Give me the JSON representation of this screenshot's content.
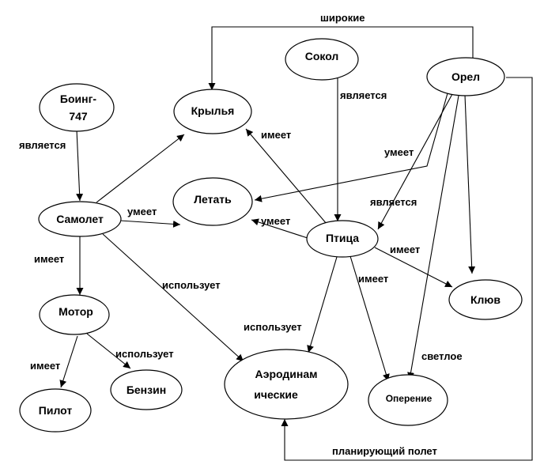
{
  "colors": {
    "stroke": "#000000",
    "fill": "#ffffff",
    "text": "#000000"
  },
  "nodes": {
    "boeing": {
      "line1": "Боинг-",
      "line2": "747"
    },
    "samolet": {
      "label": "Самолет"
    },
    "motor": {
      "label": "Мотор"
    },
    "pilot": {
      "label": "Пилот"
    },
    "benzin": {
      "label": "Бензин"
    },
    "krylya": {
      "label": "Крылья"
    },
    "letat": {
      "label": "Летать"
    },
    "sokol": {
      "label": "Сокол"
    },
    "orel": {
      "label": "Орел"
    },
    "ptitsa": {
      "label": "Птица"
    },
    "klyuv": {
      "label": "Клюв"
    },
    "aerodinam": {
      "line1": "Аэродинам",
      "line2": "ические"
    },
    "operenie": {
      "label": "Оперение"
    }
  },
  "edges": {
    "boeing_samolet": "является",
    "samolet_letat": "умеет",
    "samolet_motor": "имеет",
    "samolet_aerodinam": "использует",
    "motor_pilot": "имеет",
    "motor_benzin": "использует",
    "orel_krylya": "широкие",
    "sokol_ptitsa": "является",
    "ptitsa_krylya": "имеет",
    "orel_letat": "умеет",
    "orel_ptitsa": "является",
    "ptitsa_letat": "умеет",
    "ptitsa_klyuv": "имеет",
    "ptitsa_operenie": "имеет",
    "ptitsa_aerodinam": "использует",
    "orel_operenie": "светлое",
    "orel_aerodinam": "планирующий полет"
  }
}
